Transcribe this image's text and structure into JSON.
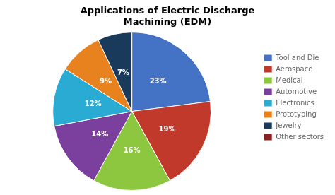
{
  "chart_data": {
    "type": "pie",
    "title": "Applications of Electric Discharge\nMachining (EDM)",
    "categories": [
      "Tool and Die",
      "Aerospace",
      "Medical",
      "Automotive",
      "Electronics",
      "Prototyping",
      "Jewelry",
      "Other sectors"
    ],
    "values": [
      23,
      19,
      16,
      14,
      12,
      9,
      7,
      null
    ],
    "value_labels": [
      "23%",
      "19%",
      "16%",
      "14%",
      "12%",
      "9%",
      "7%",
      null
    ],
    "colors": [
      "#4472C4",
      "#C0392B",
      "#8DC63F",
      "#7B3F9E",
      "#29ABD4",
      "#E8821E",
      "#1A3A5C",
      "#8B2020"
    ],
    "data_labels": true,
    "legend": "right"
  }
}
